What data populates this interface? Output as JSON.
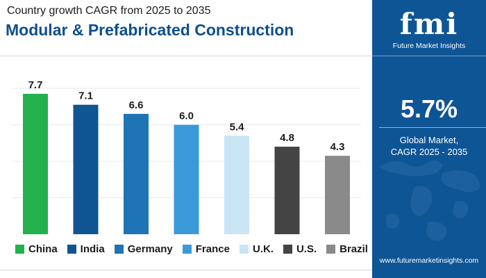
{
  "header": {
    "subtitle": "Country growth CAGR from 2025 to 2035",
    "title": "Modular & Prefabricated Construction"
  },
  "sidebar": {
    "logo_mark": "fmi",
    "logo_text": "Future Market Insights",
    "highlight_value": "5.7%",
    "caption_line1": "Global Market,",
    "caption_line2": "CAGR 2025 - 2035",
    "url": "www.futuremarketinsights.com",
    "background_color": "#0e5595"
  },
  "chart_data": {
    "type": "bar",
    "title": "Modular & Prefabricated Construction",
    "subtitle": "Country growth CAGR from 2025 to 2035",
    "categories": [
      "China",
      "India",
      "Germany",
      "France",
      "U.K.",
      "U.S.",
      "Brazil"
    ],
    "values": [
      7.7,
      7.1,
      6.6,
      6.0,
      5.4,
      4.8,
      4.3
    ],
    "colors": [
      "#22b14c",
      "#0f5592",
      "#1e74b5",
      "#3a9ad9",
      "#c9e4f5",
      "#444444",
      "#8a8a8a"
    ],
    "value_labels": [
      "7.7",
      "7.1",
      "6.6",
      "6.0",
      "5.4",
      "4.8",
      "4.3"
    ],
    "ylim": [
      0,
      8.5
    ],
    "grid": true,
    "legend_position": "bottom"
  }
}
